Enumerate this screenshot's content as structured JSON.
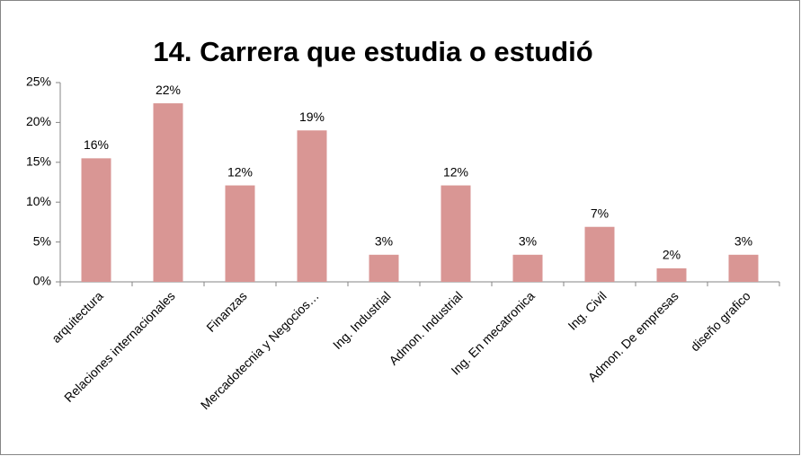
{
  "chart_data": {
    "type": "bar",
    "title": "14. Carrera que estudia o estudió",
    "categories": [
      "arquitectura",
      "Relaciones internacionales",
      "Finanzas",
      "Mercadotecnia y Negocios…",
      "Ing. Industrial",
      "Admon. Industrial",
      "Ing. En mecatronica",
      "Ing. Civil",
      "Admon. De empresas",
      "diseño grafico"
    ],
    "values": [
      15.5,
      22.4,
      12.1,
      19,
      3.4,
      12.1,
      3.4,
      6.9,
      1.7,
      3.4
    ],
    "value_labels": [
      "16%",
      "22%",
      "12%",
      "19%",
      "3%",
      "12%",
      "3%",
      "7%",
      "2%",
      "3%"
    ],
    "color": "#d99694",
    "ylim": [
      0,
      25
    ],
    "yticks": [
      {
        "value": 0,
        "label": "0%"
      },
      {
        "value": 5,
        "label": "5%"
      },
      {
        "value": 10,
        "label": "10%"
      },
      {
        "value": 15,
        "label": "15%"
      },
      {
        "value": 20,
        "label": "20%"
      },
      {
        "value": 25,
        "label": "25%"
      }
    ],
    "grid": false
  }
}
